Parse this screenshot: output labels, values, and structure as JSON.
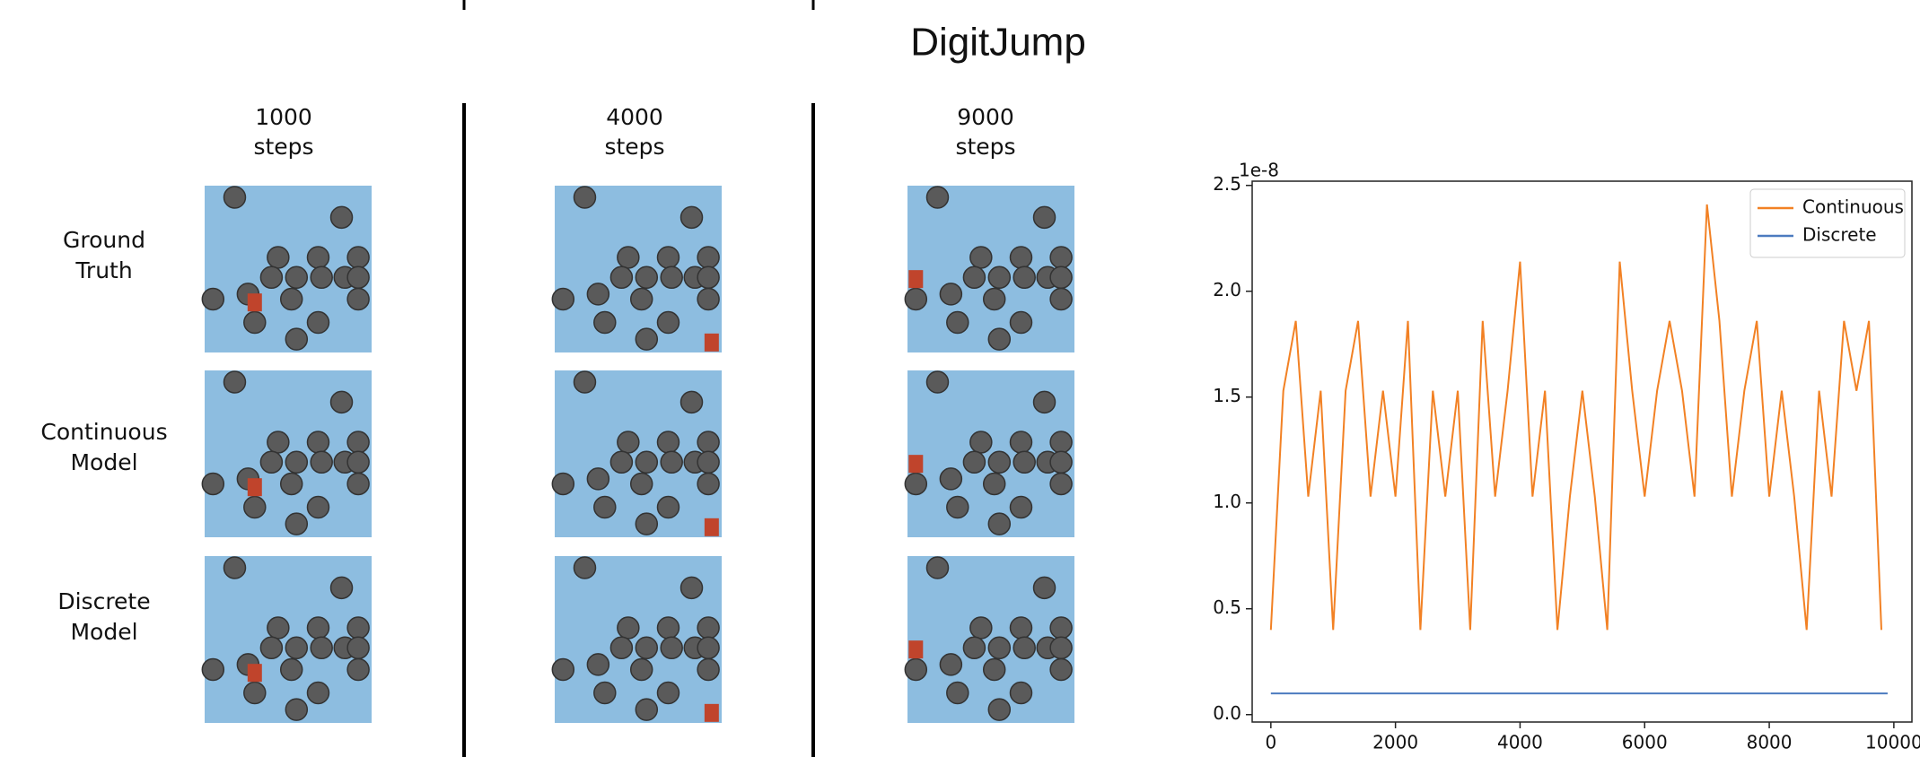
{
  "figure": {
    "title": "DigitJump",
    "columns": [
      [
        "1000",
        "steps"
      ],
      [
        "4000",
        "steps"
      ],
      [
        "9000",
        "steps"
      ]
    ],
    "rows": [
      [
        "Ground",
        "Truth"
      ],
      [
        "Continuous",
        "Model"
      ],
      [
        "Discrete",
        "Model"
      ]
    ]
  },
  "chart_data": {
    "type": "line",
    "y_offset_label": "1e-8",
    "xlim": [
      -300,
      10290
    ],
    "ylim": [
      -0.035,
      2.52
    ],
    "xticks": [
      0,
      2000,
      4000,
      6000,
      8000,
      10000
    ],
    "yticks": [
      {
        "value": 0,
        "label": "0.0"
      },
      0.5,
      {
        "value": 1,
        "label": "1.0"
      },
      1.5,
      {
        "value": 2,
        "label": "2.0"
      },
      2.5
    ],
    "legend": "upper right",
    "series": [
      {
        "name": "Continuous",
        "color": "#f28124",
        "x": [
          0,
          200,
          400,
          600,
          800,
          1000,
          1200,
          1400,
          1600,
          1800,
          2000,
          2200,
          2400,
          2600,
          2800,
          3000,
          3200,
          3400,
          3600,
          3800,
          4000,
          4200,
          4400,
          4600,
          4800,
          5000,
          5200,
          5400,
          5600,
          5800,
          6000,
          6200,
          6400,
          6600,
          6800,
          7000,
          7200,
          7400,
          7600,
          7800,
          8000,
          8200,
          8400,
          8600,
          8800,
          9000,
          9200,
          9400,
          9600,
          9800
        ],
        "values": [
          0.4,
          1.53,
          1.86,
          1.03,
          1.53,
          0.4,
          1.53,
          1.86,
          1.03,
          1.53,
          1.03,
          1.86,
          0.4,
          1.53,
          1.03,
          1.53,
          0.4,
          1.86,
          1.03,
          1.53,
          2.14,
          1.03,
          1.53,
          0.4,
          1.03,
          1.53,
          1.03,
          0.4,
          2.14,
          1.53,
          1.03,
          1.53,
          1.86,
          1.53,
          1.03,
          2.41,
          1.86,
          1.03,
          1.53,
          1.86,
          1.03,
          1.53,
          1.03,
          0.4,
          1.53,
          1.03,
          1.86,
          1.53,
          1.86,
          0.4
        ]
      },
      {
        "name": "Discrete",
        "color": "#4c7bbf",
        "x": [
          0,
          9900
        ],
        "values": [
          0.1,
          0.1
        ]
      }
    ]
  }
}
